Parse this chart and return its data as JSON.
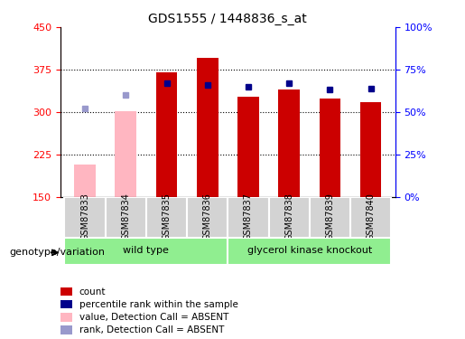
{
  "title": "GDS1555 / 1448836_s_at",
  "samples": [
    "GSM87833",
    "GSM87834",
    "GSM87835",
    "GSM87836",
    "GSM87837",
    "GSM87838",
    "GSM87839",
    "GSM87840"
  ],
  "count_values": [
    null,
    null,
    370,
    395,
    327,
    340,
    323,
    318
  ],
  "count_absent": [
    207,
    302,
    null,
    null,
    null,
    null,
    null,
    null
  ],
  "percentile_rank": [
    null,
    null,
    67,
    66,
    65,
    67,
    63,
    64
  ],
  "percentile_absent": [
    52,
    60,
    null,
    null,
    null,
    null,
    null,
    null
  ],
  "ylim_left": [
    150,
    450
  ],
  "ylim_right": [
    0,
    100
  ],
  "yticks_left": [
    150,
    225,
    300,
    375,
    450
  ],
  "yticks_right": [
    0,
    25,
    50,
    75,
    100
  ],
  "ytick_labels_right": [
    "0%",
    "25%",
    "50%",
    "75%",
    "100%"
  ],
  "groups": [
    {
      "name": "wild type",
      "start": 0,
      "end": 4,
      "color": "#90EE90"
    },
    {
      "name": "glycerol kinase knockout",
      "start": 4,
      "end": 8,
      "color": "#90EE90"
    }
  ],
  "bar_width": 0.35,
  "count_color": "#CC0000",
  "count_absent_color": "#FFB6C1",
  "rank_color": "#00008B",
  "rank_absent_color": "#9999CC",
  "background_plot": "#FFFFFF",
  "grid_color": "#000000",
  "group_label_left": "genotype/variation",
  "legend_items": [
    {
      "label": "count",
      "color": "#CC0000"
    },
    {
      "label": "percentile rank within the sample",
      "color": "#00008B"
    },
    {
      "label": "value, Detection Call = ABSENT",
      "color": "#FFB6C1"
    },
    {
      "label": "rank, Detection Call = ABSENT",
      "color": "#9999CC"
    }
  ]
}
